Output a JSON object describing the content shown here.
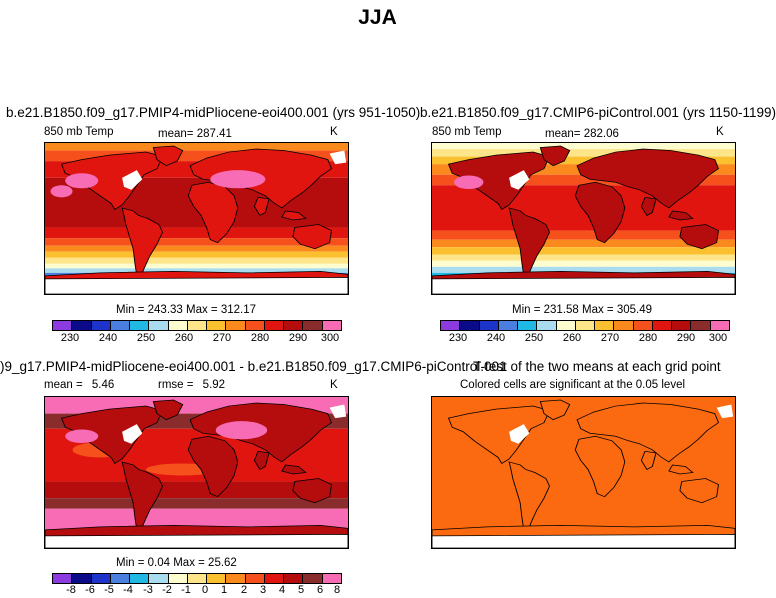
{
  "title": "JJA",
  "palette": [
    "#8b3be0",
    "#0b0b8a",
    "#1c34c9",
    "#4a7fe0",
    "#1fb9e3",
    "#a8dcee",
    "#fdfdd0",
    "#fde58a",
    "#fbc030",
    "#fb8a1e",
    "#f6511c",
    "#e0150f",
    "#b50d0d",
    "#8b2c2c",
    "#f76cb4"
  ],
  "panels": {
    "top_left": {
      "title": "b.e21.B1850.f09_g17.PMIP4-midPliocene-eoi400.001 (yrs 951-1050)",
      "variable": "850 mb Temp",
      "mean_label": "mean=",
      "mean_value": "287.41",
      "units": "K",
      "minmax": "Min = 243.33  Max = 312.17",
      "colorbar_ticks": [
        "230",
        "240",
        "250",
        "260",
        "270",
        "280",
        "290",
        "300"
      ]
    },
    "top_right": {
      "title": "b.e21.B1850.f09_g17.CMIP6-piControl.001 (yrs 1150-1199)",
      "variable": "850 mb Temp",
      "mean_label": "mean=",
      "mean_value": "282.06",
      "units": "K",
      "minmax": "Min = 231.58  Max = 305.49",
      "colorbar_ticks": [
        "230",
        "240",
        "250",
        "260",
        "270",
        "280",
        "290",
        "300"
      ]
    },
    "bottom_left": {
      "title": ")9_g17.PMIP4-midPliocene-eoi400.001 - b.e21.B1850.f09_g17.CMIP6-piControl.001",
      "mean_label": "mean =",
      "mean_value": "5.46",
      "rmse_label": "rmse =",
      "rmse_value": "5.92",
      "units": "K",
      "minmax": "Min =   0.04  Max =   25.62",
      "colorbar_ticks": [
        "-8",
        "-6",
        "-5",
        "-4",
        "-3",
        "-2",
        "-1",
        "0",
        "1",
        "2",
        "3",
        "4",
        "5",
        "6",
        "8"
      ]
    },
    "bottom_right": {
      "title": "T-test of the two means at each grid point",
      "subtitle": "Colored cells are significant at the 0.05 level"
    }
  }
}
